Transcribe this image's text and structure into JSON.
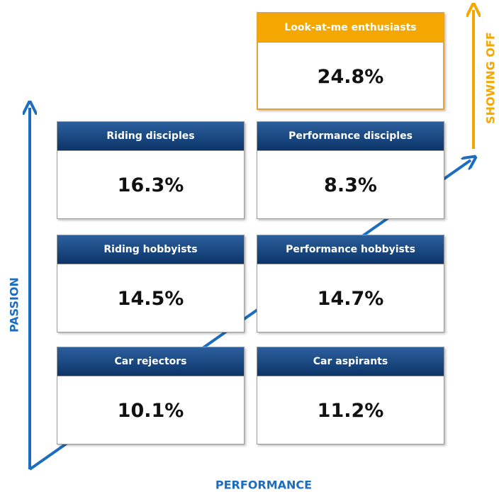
{
  "axes": {
    "vertical": "PASSION",
    "horizontal": "PERFORMANCE",
    "extra": "SHOWING OFF"
  },
  "segments": [
    {
      "label": "Look-at-me enthusiasts",
      "share": "24.8%"
    },
    {
      "label": "Riding disciples",
      "share": "16.3%"
    },
    {
      "label": "Performance disciples",
      "share": "8.3%"
    },
    {
      "label": "Riding hobbyists",
      "share": "14.5%"
    },
    {
      "label": "Performance hobbyists",
      "share": "14.7%"
    },
    {
      "label": "Car rejectors",
      "share": "10.1%"
    },
    {
      "label": "Car aspirants",
      "share": "11.2%"
    }
  ]
}
